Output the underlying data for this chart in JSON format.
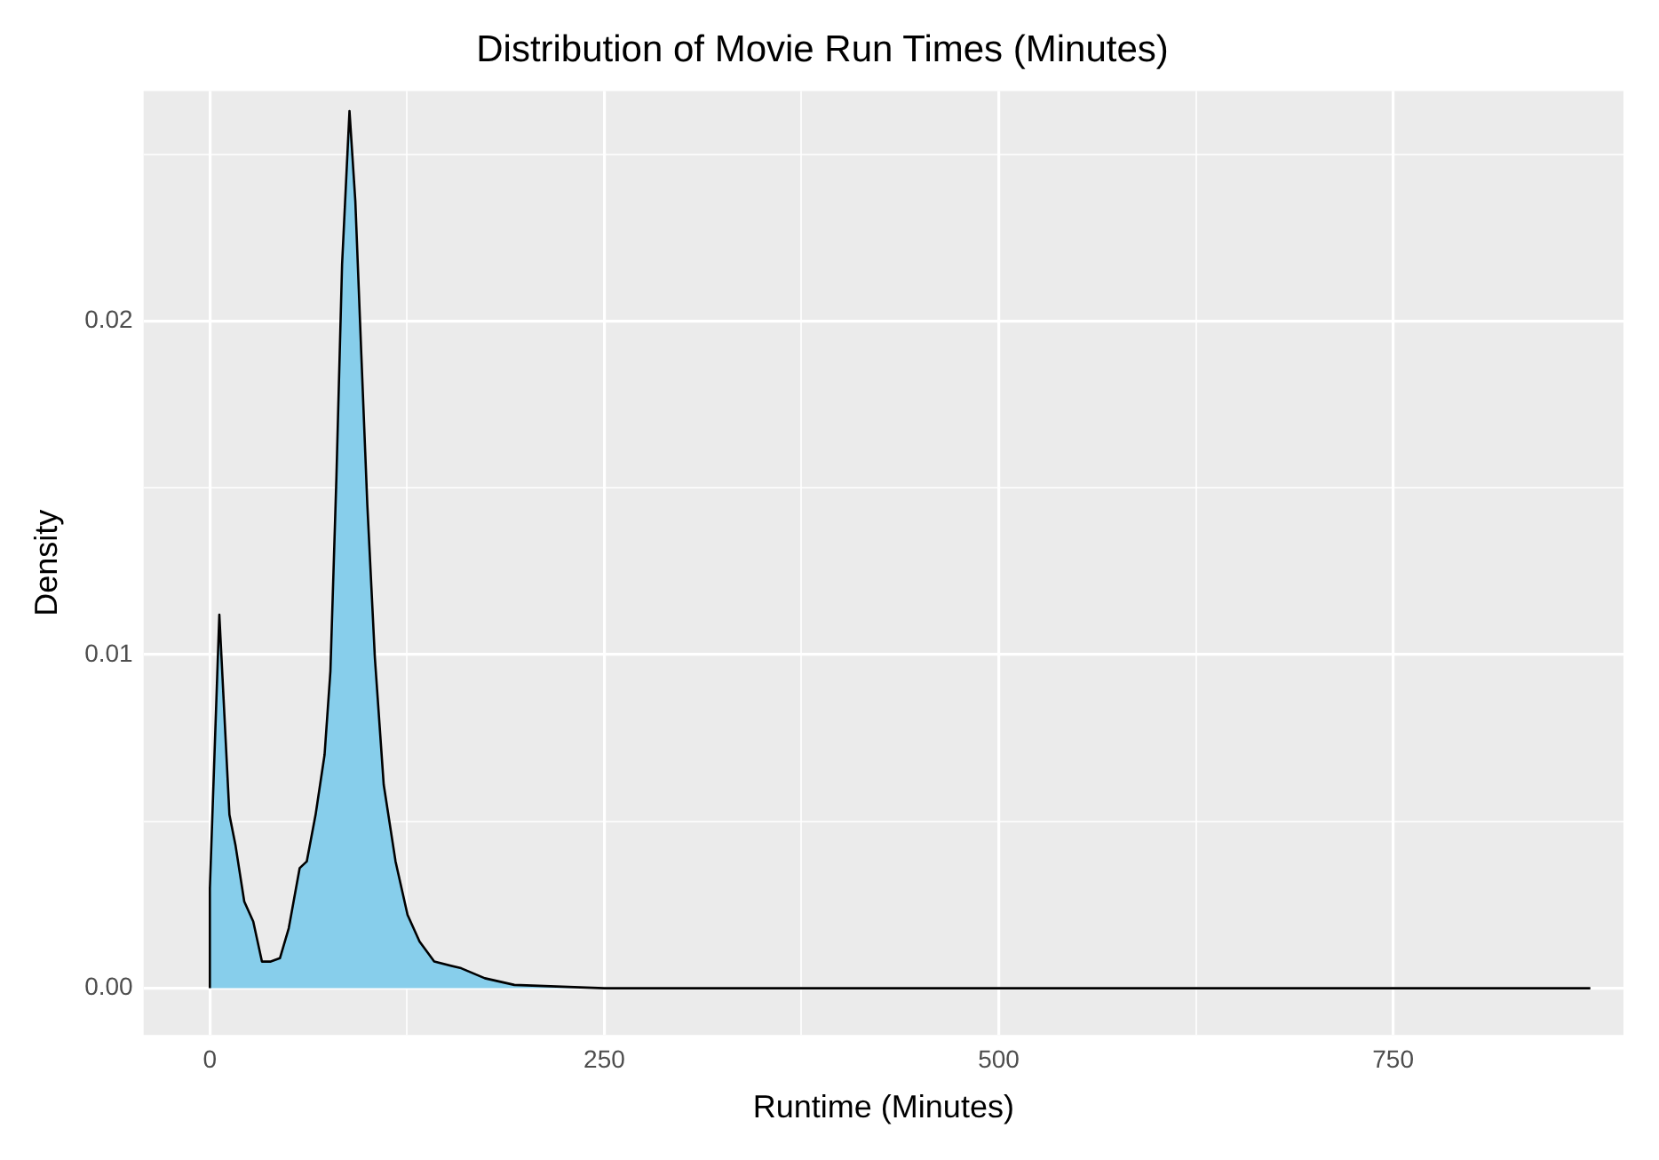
{
  "chart_data": {
    "type": "area",
    "title": "Distribution of Movie Run Times (Minutes)",
    "xlabel": "Runtime (Minutes)",
    "ylabel": "Density",
    "x": [
      0,
      0,
      6,
      12.4,
      16.2,
      21.8,
      27.5,
      33,
      38.6,
      44.4,
      50,
      56.9,
      61.4,
      67,
      72.7,
      76.4,
      80.2,
      83.8,
      88.5,
      92.2,
      96,
      99.8,
      104.6,
      110.2,
      117.7,
      125.3,
      132.9,
      142.2,
      159.3,
      174.3,
      193,
      250,
      400,
      600,
      875
    ],
    "series": [
      {
        "color": "#87ceeb",
        "values": [
          0,
          0.003,
          0.0112,
          0.0052,
          0.0043,
          0.0026,
          0.002,
          0.0008,
          0.0008,
          0.0009,
          0.0018,
          0.0036,
          0.0038,
          0.0052,
          0.007,
          0.0095,
          0.0153,
          0.0217,
          0.0263,
          0.0236,
          0.019,
          0.0145,
          0.0099,
          0.0061,
          0.0038,
          0.0022,
          0.0014,
          0.0008,
          0.0006,
          0.0003,
          0.0001,
          0,
          0,
          0,
          0
        ]
      }
    ],
    "xlim": [
      -42,
      896
    ],
    "ylim": [
      -0.0014,
      0.0269
    ],
    "xticks": [
      0,
      {
        "value": 125,
        "label": null
      },
      250,
      {
        "value": 375,
        "label": null
      },
      500,
      {
        "value": 625,
        "label": null
      },
      750
    ],
    "yticks": [
      {
        "value": 0,
        "label": "0.00"
      },
      {
        "value": 0.005,
        "label": null
      },
      {
        "value": 0.01,
        "label": "0.01"
      },
      {
        "value": 0.015,
        "label": null
      },
      {
        "value": 0.02,
        "label": "0.02"
      },
      {
        "value": 0.025,
        "label": null
      }
    ],
    "grid": true,
    "legend": false
  }
}
